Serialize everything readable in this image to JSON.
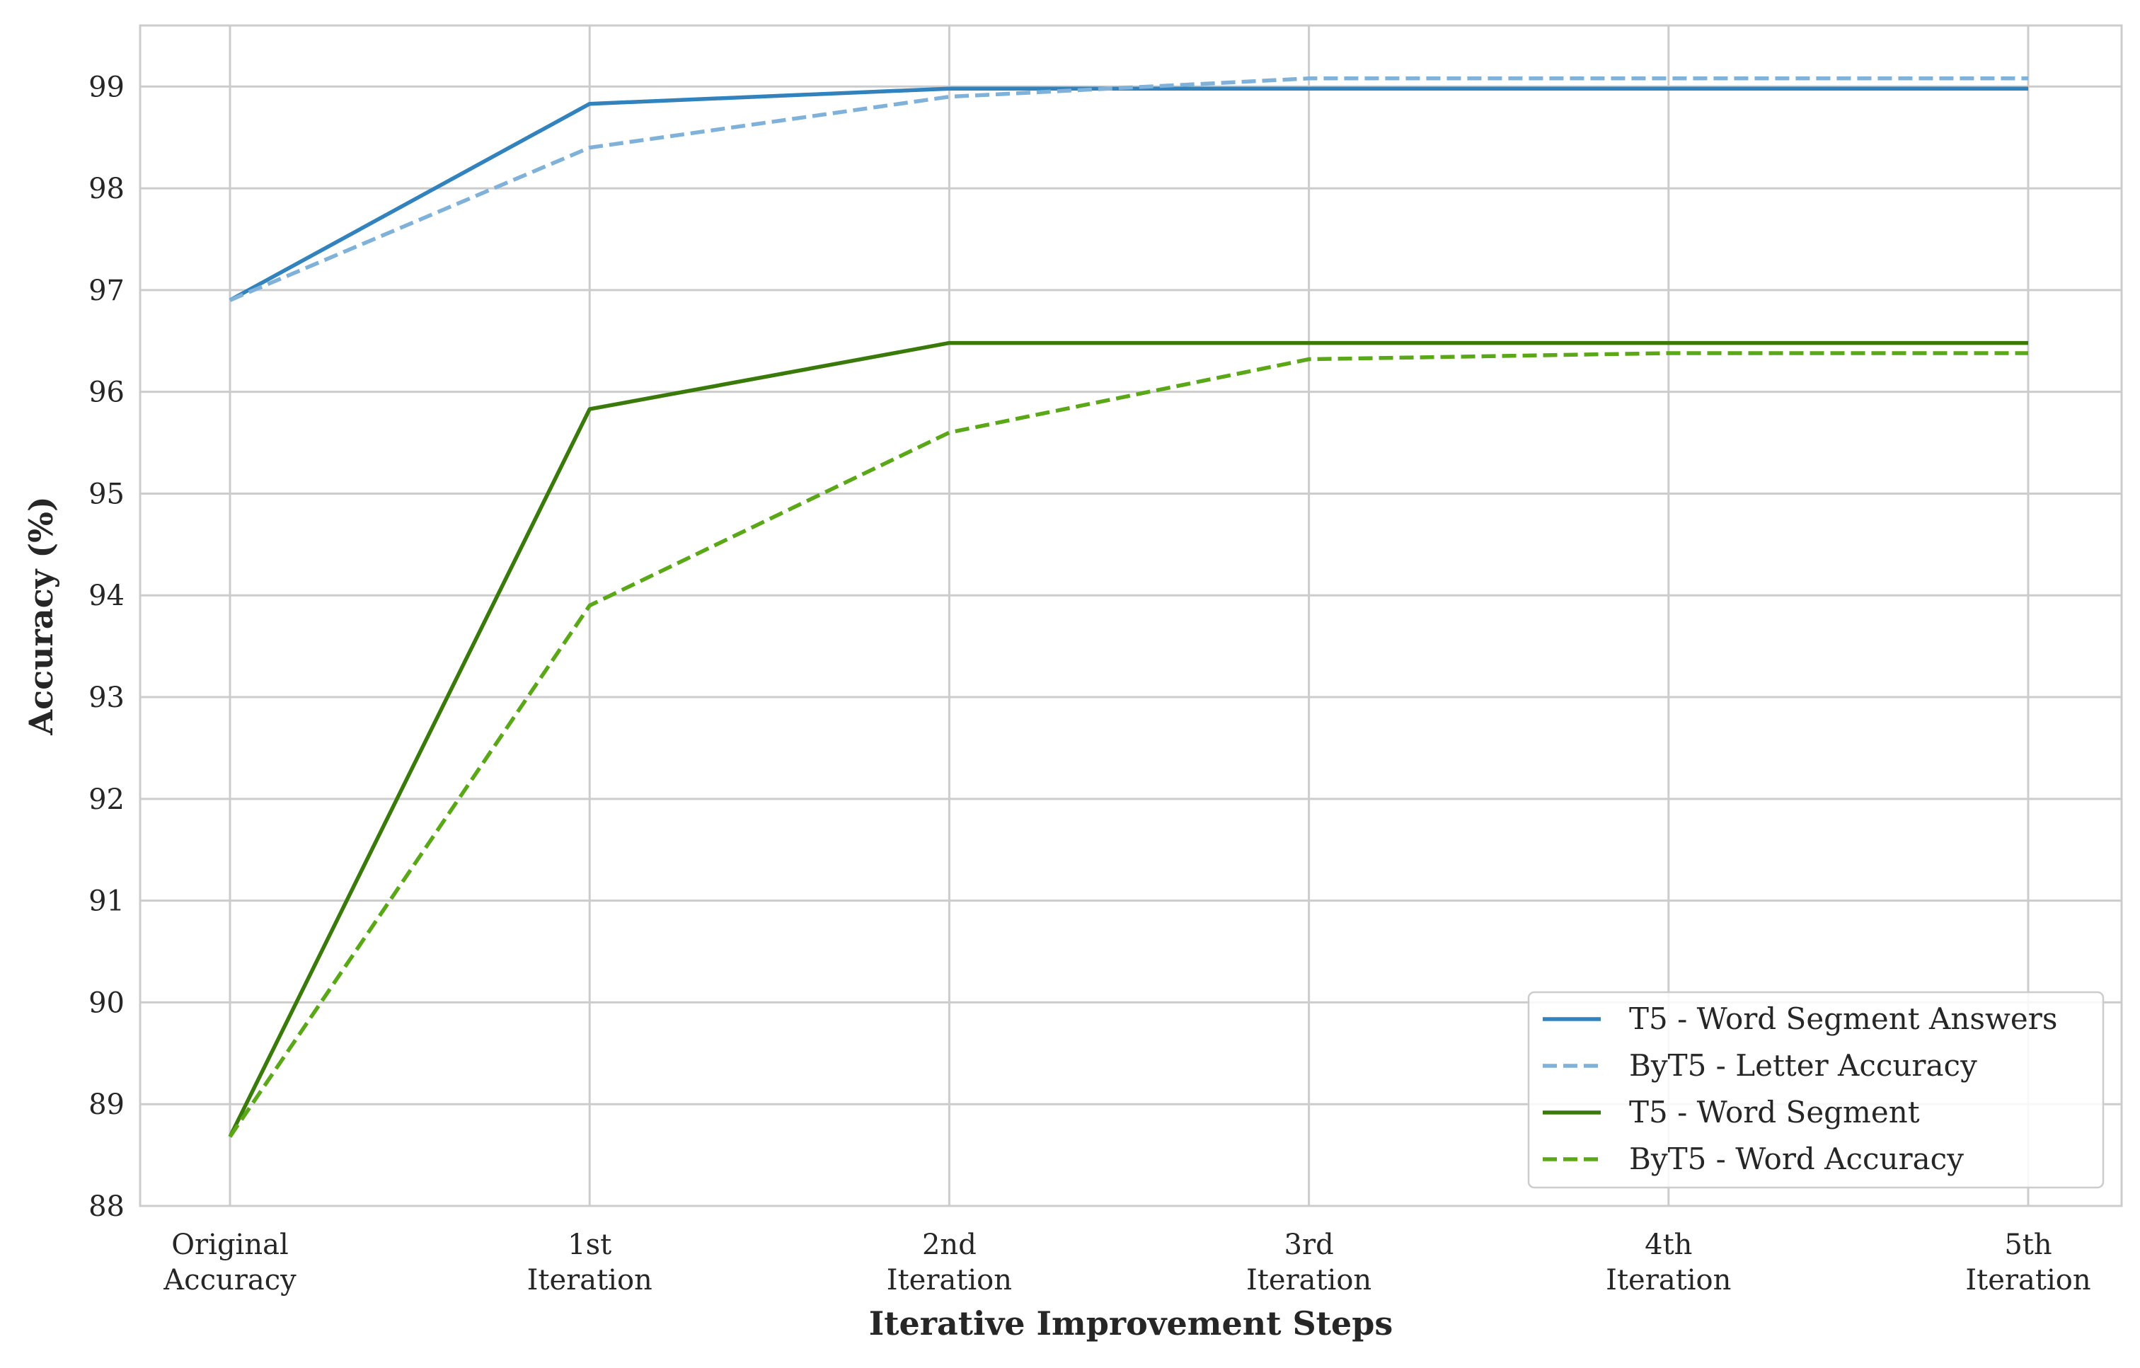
{
  "chart_data": {
    "type": "line",
    "categories": [
      [
        "Original",
        "Accuracy"
      ],
      [
        "1st",
        "Iteration"
      ],
      [
        "2nd",
        "Iteration"
      ],
      [
        "3rd",
        "Iteration"
      ],
      [
        "4th",
        "Iteration"
      ],
      [
        "5th",
        "Iteration"
      ]
    ],
    "xlabel": "Iterative Improvement Steps",
    "ylabel": "Accuracy (%)",
    "ylim": [
      88,
      99.6
    ],
    "yticks": [
      88,
      89,
      90,
      91,
      92,
      93,
      94,
      95,
      96,
      97,
      98,
      99
    ],
    "grid": true,
    "legend_position": "bottom-right",
    "series": [
      {
        "name": "T5 - Word Segment Answers",
        "values": [
          96.9,
          98.83,
          98.98,
          98.98,
          98.98,
          98.98
        ],
        "color": "#3182bd",
        "dash": "solid"
      },
      {
        "name": "ByT5 - Letter Accuracy",
        "values": [
          96.9,
          98.4,
          98.9,
          99.08,
          99.08,
          99.08
        ],
        "color": "#7fb1d9",
        "dash": "dashed"
      },
      {
        "name": "T5 - Word Segment",
        "values": [
          88.68,
          95.83,
          96.48,
          96.48,
          96.48,
          96.48
        ],
        "color": "#3a7a0a",
        "dash": "solid"
      },
      {
        "name": "ByT5 - Word Accuracy",
        "values": [
          88.68,
          93.9,
          95.6,
          96.32,
          96.38,
          96.38
        ],
        "color": "#5aa717",
        "dash": "dashed"
      }
    ]
  }
}
